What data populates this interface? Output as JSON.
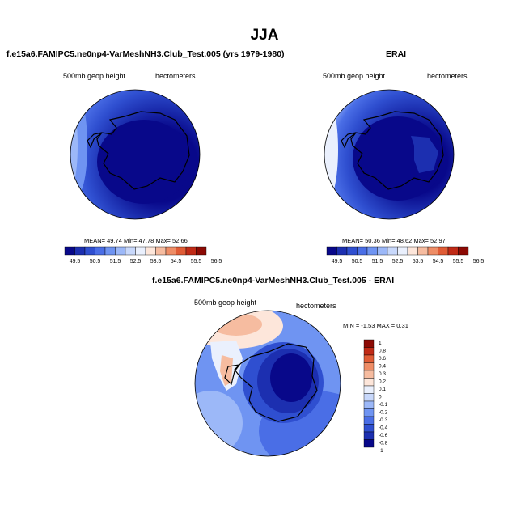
{
  "main_title": "JJA",
  "panels": [
    {
      "title": "f.e15a6.FAMIPC5.ne0np4-VarMeshNH3.Club_Test.005 (yrs 1979-1980)",
      "left_label": "500mb geop height",
      "right_label": "hectometers",
      "stats": "MEAN=  49.74  Min=  47.78  Max=  52.66"
    },
    {
      "title": "ERAI",
      "left_label": "500mb geop height",
      "right_label": "hectometers",
      "stats": "MEAN=  50.36  Min=  48.62  Max=  52.97"
    },
    {
      "title": "f.e15a6.FAMIPC5.ne0np4-VarMeshNH3.Club_Test.005 - ERAI",
      "left_label": "500mb geop height",
      "right_label": "hectometers",
      "stats": "MIN =  -1.53 MAX =   0.31"
    }
  ],
  "abs_colorbar": {
    "colors": [
      "#08088a",
      "#1c2fb0",
      "#2f4fd0",
      "#4a6ee6",
      "#6f94f2",
      "#9cb8f8",
      "#c8d8fb",
      "#eaf0fd",
      "#fde6da",
      "#f6bca0",
      "#ee8d66",
      "#e05c36",
      "#c02a16",
      "#8c0a04"
    ],
    "labels": [
      "49.5",
      "50.5",
      "51.5",
      "52.5",
      "53.5",
      "54.5",
      "55.5",
      "56.5"
    ]
  },
  "diff_colorbar": {
    "colors": [
      "#8c0a04",
      "#c02a16",
      "#e05c36",
      "#ee8d66",
      "#f6bca0",
      "#fde6da",
      "#eaf0fd",
      "#c8d8fb",
      "#9cb8f8",
      "#6f94f2",
      "#4a6ee6",
      "#2f4fd0",
      "#1c2fb0",
      "#08088a"
    ],
    "labels": [
      "1",
      "0.8",
      "0.6",
      "0.4",
      "0.3",
      "0.2",
      "0.1",
      "0",
      "-0.1",
      "-0.2",
      "-0.3",
      "-0.4",
      "-0.6",
      "-0.8",
      "-1"
    ]
  }
}
